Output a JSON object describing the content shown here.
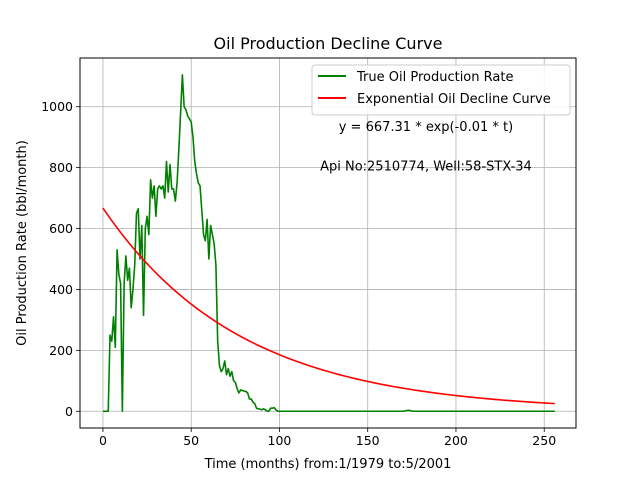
{
  "chart_data": {
    "type": "line",
    "title": "Oil Production Decline Curve",
    "xlabel": "Time (months) from:1/1979 to:5/2001",
    "ylabel": "Oil Production Rate (bbl/month)",
    "xlim": [
      -13,
      268
    ],
    "ylim": [
      -55,
      1160
    ],
    "xticks": [
      0,
      50,
      100,
      150,
      200,
      250
    ],
    "yticks": [
      0,
      200,
      400,
      600,
      800,
      1000
    ],
    "grid": true,
    "legend_position": "top-right",
    "annotations": [
      {
        "text": "y = 667.31 * exp(-0.01 * t)",
        "x": 183,
        "y": 920
      },
      {
        "text": "Api No:2510774, Well:58-STX-34",
        "x": 183,
        "y": 790
      }
    ],
    "series": [
      {
        "name": "True Oil Production Rate",
        "color": "#008000",
        "x": [
          0,
          1,
          2,
          3,
          4,
          5,
          6,
          7,
          8,
          9,
          10,
          11,
          12,
          13,
          14,
          15,
          16,
          17,
          18,
          19,
          20,
          21,
          22,
          23,
          24,
          25,
          26,
          27,
          28,
          29,
          30,
          31,
          32,
          33,
          34,
          35,
          36,
          37,
          38,
          39,
          40,
          41,
          42,
          43,
          44,
          45,
          46,
          47,
          48,
          49,
          50,
          51,
          52,
          53,
          54,
          55,
          56,
          57,
          58,
          59,
          60,
          61,
          62,
          63,
          64,
          65,
          66,
          67,
          68,
          69,
          70,
          71,
          72,
          73,
          74,
          75,
          76,
          77,
          78,
          79,
          80,
          81,
          82,
          83,
          84,
          85,
          86,
          87,
          88,
          89,
          90,
          91,
          92,
          93,
          94,
          95,
          96,
          97,
          98,
          99,
          100,
          101,
          102,
          103,
          104,
          105,
          106,
          107,
          108,
          120,
          140,
          160,
          170,
          173,
          176,
          190,
          220,
          256
        ],
        "values": [
          0,
          0,
          0,
          0,
          250,
          230,
          310,
          210,
          530,
          450,
          420,
          0,
          420,
          510,
          430,
          470,
          340,
          400,
          480,
          650,
          665,
          500,
          610,
          315,
          600,
          640,
          580,
          760,
          700,
          740,
          640,
          730,
          740,
          730,
          740,
          700,
          820,
          720,
          810,
          730,
          730,
          690,
          750,
          860,
          980,
          1105,
          1000,
          990,
          970,
          960,
          950,
          900,
          820,
          780,
          750,
          740,
          660,
          580,
          560,
          630,
          500,
          610,
          580,
          550,
          480,
          230,
          150,
          130,
          140,
          165,
          120,
          140,
          115,
          130,
          100,
          95,
          75,
          60,
          70,
          68,
          66,
          65,
          60,
          40,
          40,
          30,
          25,
          10,
          8,
          7,
          5,
          8,
          5,
          0,
          0,
          10,
          10,
          12,
          5,
          0,
          0,
          0,
          0,
          0,
          0,
          0,
          0,
          0,
          0,
          0,
          0,
          0,
          0,
          3,
          0,
          0,
          0,
          0
        ]
      },
      {
        "name": "Exponential Oil Decline Curve",
        "color": "#ff0000",
        "model": {
          "a": 667.31,
          "b": 0.0128
        },
        "x_range": [
          0,
          256
        ]
      }
    ]
  }
}
